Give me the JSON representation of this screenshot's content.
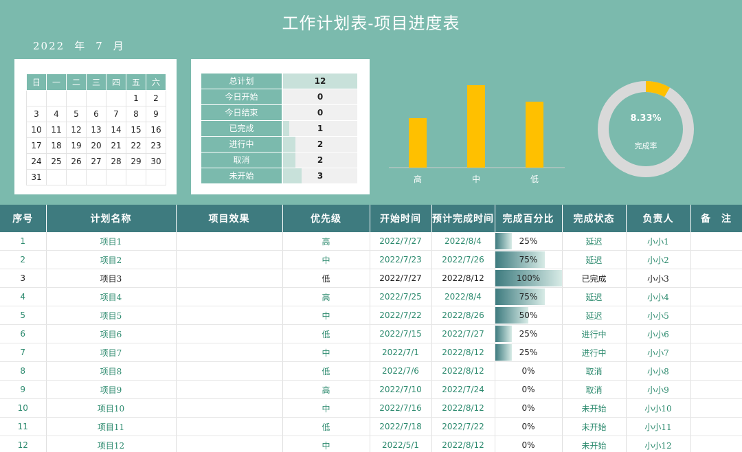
{
  "title": "工作计划表-项目进度表",
  "year_month": {
    "year": "2022",
    "year_unit": "年",
    "month": "7",
    "month_unit": "月"
  },
  "calendar": {
    "weekdays": [
      "日",
      "一",
      "二",
      "三",
      "四",
      "五",
      "六"
    ],
    "weeks": [
      [
        "",
        "",
        "",
        "",
        "",
        "1",
        "2"
      ],
      [
        "3",
        "4",
        "5",
        "6",
        "7",
        "8",
        "9"
      ],
      [
        "10",
        "11",
        "12",
        "13",
        "14",
        "15",
        "16"
      ],
      [
        "17",
        "18",
        "19",
        "20",
        "21",
        "22",
        "23"
      ],
      [
        "24",
        "25",
        "26",
        "27",
        "28",
        "29",
        "30"
      ],
      [
        "31",
        "",
        "",
        "",
        "",
        "",
        ""
      ]
    ]
  },
  "summary": [
    {
      "label": "总计划",
      "value": "12",
      "fraction": 1.0
    },
    {
      "label": "今日开始",
      "value": "0",
      "fraction": 0
    },
    {
      "label": "今日结束",
      "value": "0",
      "fraction": 0
    },
    {
      "label": "已完成",
      "value": "1",
      "fraction": 0.0833
    },
    {
      "label": "进行中",
      "value": "2",
      "fraction": 0.1667
    },
    {
      "label": "取消",
      "value": "2",
      "fraction": 0.1667
    },
    {
      "label": "未开始",
      "value": "3",
      "fraction": 0.25
    }
  ],
  "chart_data": [
    {
      "type": "bar",
      "categories": [
        "高",
        "中",
        "低"
      ],
      "values": [
        3,
        5,
        4
      ],
      "colors": {
        "bar": "#ffc000",
        "axis": "#cccccc"
      }
    },
    {
      "type": "pie",
      "values": [
        8.33,
        91.67
      ],
      "center_value": "8.33%",
      "center_label": "完成率",
      "colors": {
        "done": "#ffc000",
        "rest": "#d9d9d9"
      }
    }
  ],
  "table": {
    "headers": [
      "序号",
      "计划名称",
      "项目效果",
      "优先级",
      "开始时间",
      "预计完成时间",
      "完成百分比",
      "完成状态",
      "负责人",
      "备　注"
    ],
    "rows": [
      {
        "no": "1",
        "name": "项目1",
        "effect": "",
        "priority": "高",
        "start": "2022/7/27",
        "end": "2022/8/4",
        "pct": "25%",
        "pct_value": 0.25,
        "status": "延迟",
        "owner": "小小1",
        "note": ""
      },
      {
        "no": "2",
        "name": "项目2",
        "effect": "",
        "priority": "中",
        "start": "2022/7/23",
        "end": "2022/7/26",
        "pct": "75%",
        "pct_value": 0.75,
        "status": "延迟",
        "owner": "小小2",
        "note": ""
      },
      {
        "no": "3",
        "name": "项目3",
        "effect": "",
        "priority": "低",
        "start": "2022/7/27",
        "end": "2022/8/12",
        "pct": "100%",
        "pct_value": 1.0,
        "status": "已完成",
        "owner": "小小3",
        "note": ""
      },
      {
        "no": "4",
        "name": "项目4",
        "effect": "",
        "priority": "高",
        "start": "2022/7/25",
        "end": "2022/8/4",
        "pct": "75%",
        "pct_value": 0.75,
        "status": "延迟",
        "owner": "小小4",
        "note": ""
      },
      {
        "no": "5",
        "name": "项目5",
        "effect": "",
        "priority": "中",
        "start": "2022/7/22",
        "end": "2022/8/26",
        "pct": "50%",
        "pct_value": 0.5,
        "status": "延迟",
        "owner": "小小5",
        "note": ""
      },
      {
        "no": "6",
        "name": "项目6",
        "effect": "",
        "priority": "低",
        "start": "2022/7/15",
        "end": "2022/7/27",
        "pct": "25%",
        "pct_value": 0.25,
        "status": "进行中",
        "owner": "小小6",
        "note": ""
      },
      {
        "no": "7",
        "name": "项目7",
        "effect": "",
        "priority": "中",
        "start": "2022/7/1",
        "end": "2022/8/12",
        "pct": "25%",
        "pct_value": 0.25,
        "status": "进行中",
        "owner": "小小7",
        "note": ""
      },
      {
        "no": "8",
        "name": "项目8",
        "effect": "",
        "priority": "低",
        "start": "2022/7/6",
        "end": "2022/8/12",
        "pct": "0%",
        "pct_value": 0,
        "status": "取消",
        "owner": "小小8",
        "note": ""
      },
      {
        "no": "9",
        "name": "项目9",
        "effect": "",
        "priority": "高",
        "start": "2022/7/10",
        "end": "2022/7/24",
        "pct": "0%",
        "pct_value": 0,
        "status": "取消",
        "owner": "小小9",
        "note": ""
      },
      {
        "no": "10",
        "name": "项目10",
        "effect": "",
        "priority": "中",
        "start": "2022/7/16",
        "end": "2022/8/12",
        "pct": "0%",
        "pct_value": 0,
        "status": "未开始",
        "owner": "小小10",
        "note": ""
      },
      {
        "no": "11",
        "name": "项目11",
        "effect": "",
        "priority": "低",
        "start": "2022/7/18",
        "end": "2022/7/22",
        "pct": "0%",
        "pct_value": 0,
        "status": "未开始",
        "owner": "小小11",
        "note": ""
      },
      {
        "no": "12",
        "name": "项目12",
        "effect": "",
        "priority": "中",
        "start": "2022/5/1",
        "end": "2022/8/12",
        "pct": "0%",
        "pct_value": 0,
        "status": "未开始",
        "owner": "小小12",
        "note": ""
      }
    ]
  }
}
